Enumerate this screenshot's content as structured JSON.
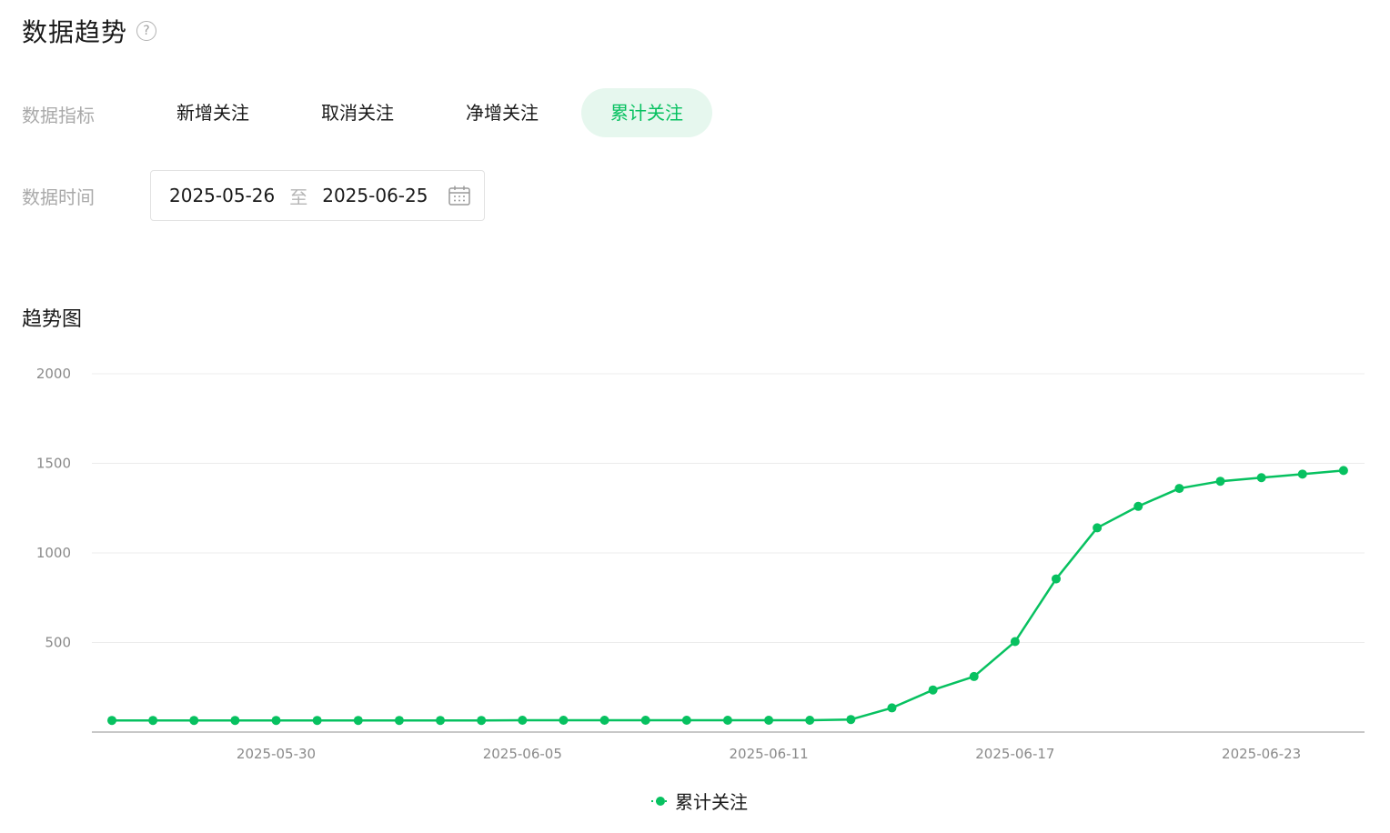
{
  "header": {
    "title": "数据趋势",
    "help_glyph": "?"
  },
  "filters": {
    "metric_label": "数据指标",
    "metrics": [
      "新增关注",
      "取消关注",
      "净增关注",
      "累计关注"
    ],
    "active_metric": "累计关注",
    "time_label": "数据时间",
    "date_start": "2025-05-26",
    "date_separator": "至",
    "date_end": "2025-06-25"
  },
  "trend": {
    "title": "趋势图"
  },
  "colors": {
    "accent": "#07c160",
    "accent_bg": "#e6f7ee",
    "grid": "#ececec",
    "axis": "#c8c8c8"
  },
  "chart_data": {
    "type": "line",
    "title": "趋势图",
    "x": [
      "2025-05-26",
      "2025-05-27",
      "2025-05-28",
      "2025-05-29",
      "2025-05-30",
      "2025-05-31",
      "2025-06-01",
      "2025-06-02",
      "2025-06-03",
      "2025-06-04",
      "2025-06-05",
      "2025-06-06",
      "2025-06-07",
      "2025-06-08",
      "2025-06-09",
      "2025-06-10",
      "2025-06-11",
      "2025-06-12",
      "2025-06-13",
      "2025-06-14",
      "2025-06-15",
      "2025-06-16",
      "2025-06-17",
      "2025-06-18",
      "2025-06-19",
      "2025-06-20",
      "2025-06-21",
      "2025-06-22",
      "2025-06-23",
      "2025-06-24",
      "2025-06-25"
    ],
    "x_tick_labels": [
      "2025-05-30",
      "2025-06-05",
      "2025-06-11",
      "2025-06-17",
      "2025-06-23"
    ],
    "series": [
      {
        "name": "累计关注",
        "values": [
          65,
          65,
          65,
          65,
          65,
          65,
          65,
          65,
          65,
          65,
          66,
          66,
          66,
          66,
          66,
          66,
          66,
          66,
          70,
          135,
          235,
          310,
          505,
          855,
          1140,
          1260,
          1360,
          1400,
          1420,
          1440,
          1460
        ]
      }
    ],
    "y_ticks": [
      500,
      1000,
      1500,
      2000
    ],
    "ylim": [
      0,
      2000
    ],
    "xlabel": "",
    "ylabel": "",
    "grid": true,
    "legend": "bottom-center"
  }
}
